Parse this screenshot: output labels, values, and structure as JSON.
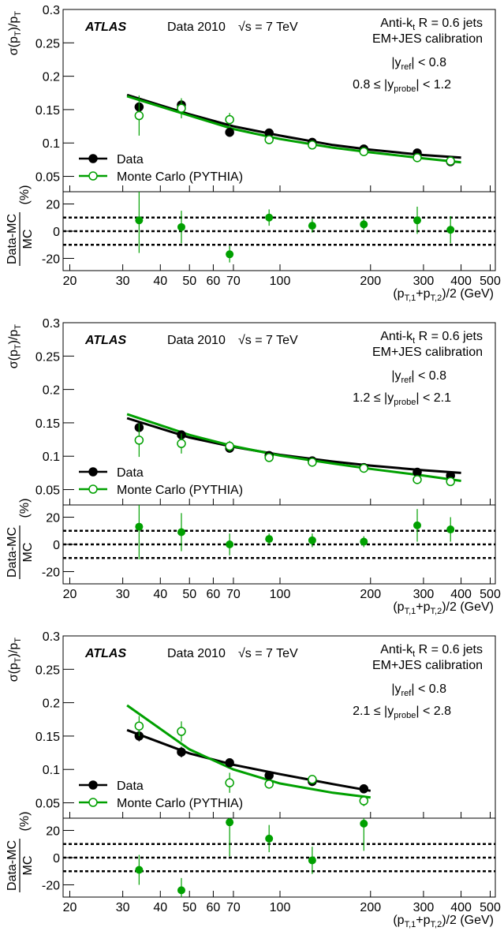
{
  "chart_data": [
    {
      "type": "errorbar",
      "xscale": "log",
      "legend": "lower left",
      "xlim": [
        19,
        520
      ],
      "xticks": [
        20,
        30,
        40,
        50,
        60,
        70,
        100,
        200,
        300,
        400,
        500
      ],
      "xlabel": [
        "(p",
        "T,1",
        "+p",
        "T,2",
        ")/2 (GeV)"
      ],
      "ylabel": [
        "σ(p",
        "T",
        ")/p",
        "T"
      ],
      "ylim": [
        0.027,
        0.3
      ],
      "yticks": [
        0.05,
        0.1,
        0.15,
        0.2,
        0.25,
        0.3
      ],
      "annotations": {
        "experiment": "ATLAS",
        "dataset": "Data 2010",
        "energy": "√s = 7 TeV",
        "jets": [
          "Anti-k",
          "t",
          " R = 0.6 jets"
        ],
        "calibration": "EM+JES calibration",
        "ref": [
          "|y",
          "ref",
          "| < 0.8"
        ],
        "probe": [
          "0.8 ≤ |y",
          "probe",
          "| < 1.2"
        ]
      },
      "series": [
        {
          "name": "Data",
          "color": "#000000",
          "marker": "filled",
          "x": [
            34,
            47,
            68,
            92,
            128,
            190,
            286,
            369
          ],
          "values": [
            0.154,
            0.157,
            0.116,
            0.115,
            0.101,
            0.091,
            0.085,
            0.072
          ],
          "errors": [
            0.006,
            0.006,
            0.004,
            0.003,
            0.003,
            0.003,
            0.004,
            0.004
          ],
          "fit": {
            "x": [
              31,
              50,
              70,
              100,
              150,
              200,
              300,
              400
            ],
            "values": [
              0.172,
              0.143,
              0.125,
              0.111,
              0.097,
              0.09,
              0.082,
              0.078
            ]
          }
        },
        {
          "name": "Monte Carlo (PYTHIA)",
          "color": "#00a000",
          "marker": "open",
          "x": [
            34,
            47,
            68,
            92,
            128,
            190,
            286,
            369
          ],
          "values": [
            0.141,
            0.152,
            0.135,
            0.105,
            0.097,
            0.087,
            0.078,
            0.073
          ],
          "errors": [
            0.03,
            0.015,
            0.01,
            0.005,
            0.004,
            0.004,
            0.004,
            0.004
          ],
          "fit": {
            "x": [
              31,
              50,
              70,
              100,
              150,
              200,
              300,
              400
            ],
            "values": [
              0.17,
              0.141,
              0.121,
              0.106,
              0.093,
              0.086,
              0.077,
              0.071
            ]
          }
        }
      ],
      "ratio": {
        "ylabel": {
          "numerator": "Data-MC",
          "denominator": "MC",
          "unit": "(%)"
        },
        "ylim": [
          -29,
          29
        ],
        "yticks": [
          -20,
          0,
          20
        ],
        "ref_lines": [
          -10,
          0,
          10
        ],
        "color": "#00a000",
        "x": [
          34,
          47,
          68,
          92,
          128,
          190,
          286,
          369
        ],
        "values": [
          8,
          3,
          -17,
          10,
          4,
          5,
          8,
          1
        ],
        "errors": [
          24,
          12,
          6,
          6,
          5,
          4,
          10,
          10
        ]
      }
    },
    {
      "type": "errorbar",
      "xscale": "log",
      "legend": "lower left",
      "xlim": [
        19,
        520
      ],
      "xticks": [
        20,
        30,
        40,
        50,
        60,
        70,
        100,
        200,
        300,
        400,
        500
      ],
      "xlabel": [
        "(p",
        "T,1",
        "+p",
        "T,2",
        ")/2 (GeV)"
      ],
      "ylabel": [
        "σ(p",
        "T",
        ")/p",
        "T"
      ],
      "ylim": [
        0.027,
        0.3
      ],
      "yticks": [
        0.05,
        0.1,
        0.15,
        0.2,
        0.25,
        0.3
      ],
      "annotations": {
        "experiment": "ATLAS",
        "dataset": "Data 2010",
        "energy": "√s = 7 TeV",
        "jets": [
          "Anti-k",
          "t",
          " R = 0.6 jets"
        ],
        "calibration": "EM+JES calibration",
        "ref": [
          "|y",
          "ref",
          "| < 0.8"
        ],
        "probe": [
          "1.2 ≤ |y",
          "probe",
          "| < 2.1"
        ]
      },
      "series": [
        {
          "name": "Data",
          "color": "#000000",
          "marker": "filled",
          "x": [
            34,
            47,
            68,
            92,
            128,
            190,
            286,
            369
          ],
          "values": [
            0.143,
            0.132,
            0.112,
            0.101,
            0.093,
            0.083,
            0.076,
            0.071
          ],
          "errors": [
            0.006,
            0.005,
            0.004,
            0.003,
            0.003,
            0.003,
            0.003,
            0.003
          ],
          "fit": {
            "x": [
              31,
              50,
              70,
              100,
              150,
              200,
              300,
              400
            ],
            "values": [
              0.157,
              0.128,
              0.114,
              0.102,
              0.092,
              0.086,
              0.079,
              0.075
            ]
          }
        },
        {
          "name": "Monte Carlo (PYTHIA)",
          "color": "#00a000",
          "marker": "open",
          "x": [
            34,
            47,
            68,
            92,
            128,
            190,
            286,
            369
          ],
          "values": [
            0.124,
            0.119,
            0.115,
            0.098,
            0.091,
            0.082,
            0.065,
            0.062
          ],
          "errors": [
            0.025,
            0.015,
            0.008,
            0.004,
            0.003,
            0.003,
            0.004,
            0.004
          ],
          "fit": {
            "x": [
              31,
              50,
              70,
              100,
              150,
              200,
              300,
              400
            ],
            "values": [
              0.163,
              0.132,
              0.115,
              0.101,
              0.089,
              0.081,
              0.071,
              0.063
            ]
          }
        }
      ],
      "ratio": {
        "ylabel": {
          "numerator": "Data-MC",
          "denominator": "MC",
          "unit": "(%)"
        },
        "ylim": [
          -29,
          29
        ],
        "yticks": [
          -20,
          0,
          20
        ],
        "ref_lines": [
          -10,
          0,
          10
        ],
        "color": "#00a000",
        "x": [
          34,
          47,
          68,
          92,
          128,
          190,
          286,
          369
        ],
        "values": [
          13,
          9,
          0,
          4,
          3,
          2,
          14,
          11
        ],
        "errors": [
          24,
          14,
          8,
          4,
          5,
          4,
          12,
          9
        ]
      }
    },
    {
      "type": "errorbar",
      "xscale": "log",
      "legend": "lower left",
      "xlim": [
        19,
        520
      ],
      "xticks": [
        20,
        30,
        40,
        50,
        60,
        70,
        100,
        200,
        300,
        400,
        500
      ],
      "xlabel": [
        "(p",
        "T,1",
        "+p",
        "T,2",
        ")/2 (GeV)"
      ],
      "ylabel": [
        "σ(p",
        "T",
        ")/p",
        "T"
      ],
      "ylim": [
        0.027,
        0.3
      ],
      "yticks": [
        0.05,
        0.1,
        0.15,
        0.2,
        0.25,
        0.3
      ],
      "annotations": {
        "experiment": "ATLAS",
        "dataset": "Data 2010",
        "energy": "√s = 7 TeV",
        "jets": [
          "Anti-k",
          "t",
          " R = 0.6 jets"
        ],
        "calibration": "EM+JES calibration",
        "ref": [
          "|y",
          "ref",
          "| < 0.8"
        ],
        "probe": [
          "2.1 ≤ |y",
          "probe",
          "| < 2.8"
        ]
      },
      "series": [
        {
          "name": "Data",
          "color": "#000000",
          "marker": "filled",
          "x": [
            34,
            47,
            68,
            92,
            128,
            190
          ],
          "values": [
            0.15,
            0.126,
            0.11,
            0.091,
            0.082,
            0.071
          ],
          "errors": [
            0.008,
            0.008,
            0.005,
            0.004,
            0.004,
            0.004
          ],
          "fit": {
            "x": [
              31,
              50,
              70,
              100,
              150,
              200
            ],
            "values": [
              0.159,
              0.124,
              0.107,
              0.093,
              0.078,
              0.068
            ]
          }
        },
        {
          "name": "Monte Carlo (PYTHIA)",
          "color": "#00a000",
          "marker": "open",
          "x": [
            34,
            47,
            68,
            92,
            128,
            190
          ],
          "values": [
            0.165,
            0.157,
            0.08,
            0.078,
            0.085,
            0.053
          ],
          "errors": [
            0.015,
            0.015,
            0.015,
            0.005,
            0.005,
            0.008
          ],
          "fit": {
            "x": [
              31,
              50,
              70,
              100,
              150,
              200
            ],
            "values": [
              0.196,
              0.13,
              0.1,
              0.079,
              0.065,
              0.058
            ]
          }
        }
      ],
      "ratio": {
        "ylabel": {
          "numerator": "Data-MC",
          "denominator": "MC",
          "unit": "(%)"
        },
        "ylim": [
          -29,
          29
        ],
        "yticks": [
          -20,
          0,
          20
        ],
        "ref_lines": [
          -10,
          0,
          10
        ],
        "color": "#00a000",
        "x": [
          34,
          47,
          68,
          92,
          128,
          190
        ],
        "values": [
          -9,
          -24,
          26,
          14,
          -2,
          25
        ],
        "errors": [
          11,
          9,
          25,
          10,
          10,
          20
        ]
      }
    }
  ]
}
